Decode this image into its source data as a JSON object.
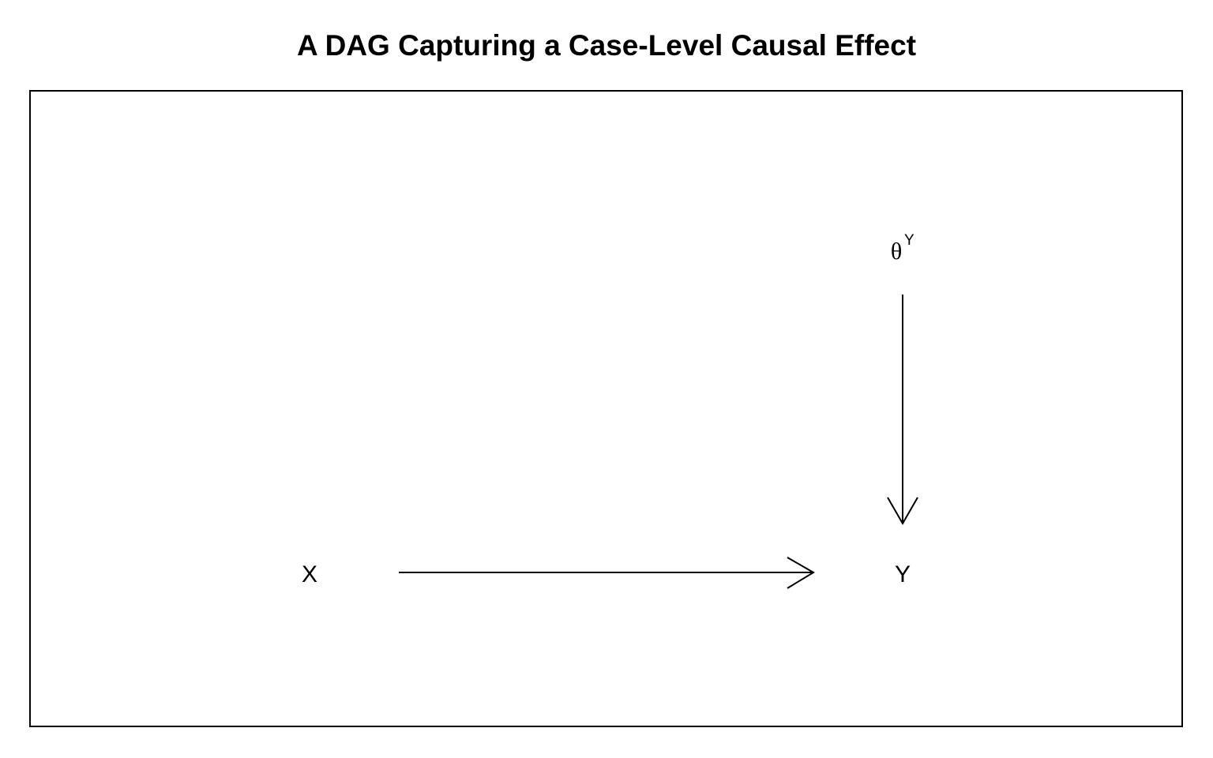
{
  "title": "A DAG Capturing a Case-Level Causal Effect",
  "nodes": {
    "x": {
      "label": "X"
    },
    "y": {
      "label": "Y"
    },
    "theta": {
      "base": "θ",
      "superscript": "Y"
    }
  },
  "edges": [
    {
      "from": "X",
      "to": "Y"
    },
    {
      "from": "θ^Y",
      "to": "Y"
    }
  ]
}
